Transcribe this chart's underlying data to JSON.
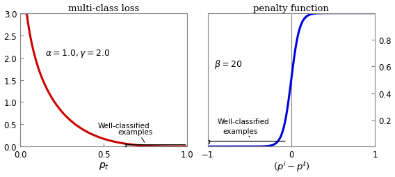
{
  "left_title": "multi-class loss",
  "right_title": "penalty function",
  "left_xlabel": "$p_t$",
  "right_xlabel": "$(p^i - p^{\\ell})$",
  "left_xlim": [
    0,
    1
  ],
  "left_ylim": [
    0,
    3.0
  ],
  "right_xlim": [
    -1,
    1
  ],
  "right_ylim": [
    0.0,
    1.0
  ],
  "left_yticks": [
    0,
    0.5,
    1.0,
    1.5,
    2.0,
    2.5,
    3.0
  ],
  "left_xticks": [
    0,
    0.5,
    1.0
  ],
  "right_xticks": [
    -1,
    0,
    1
  ],
  "right_yticks": [
    0.2,
    0.4,
    0.6,
    0.8
  ],
  "left_annotation": "$\\alpha = 1.0, \\gamma = 2.0$",
  "right_annotation": "$\\beta = 20$",
  "left_curve_color": "#cc0000",
  "right_curve_color": "#0000dd",
  "alpha": 1.0,
  "gamma": 2.0,
  "beta": 20,
  "axis_color": "#888888",
  "bg_color": "#ffffff",
  "spine_color": "#888888"
}
